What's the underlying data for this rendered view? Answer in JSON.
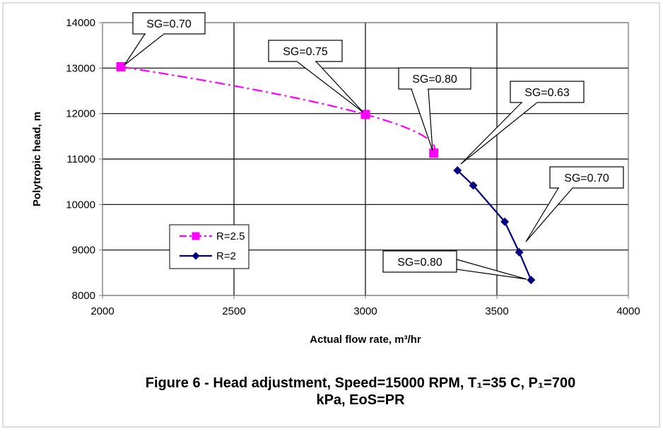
{
  "chart_data": {
    "type": "line",
    "xlabel": "Actual flow rate, m³/hr",
    "ylabel": "Polytropic head, m",
    "xlim": [
      2000,
      4000
    ],
    "ylim": [
      8000,
      14000
    ],
    "x_ticks": [
      "2000",
      "2500",
      "3000",
      "3500",
      "4000"
    ],
    "y_ticks": [
      "8000",
      "9000",
      "10000",
      "11000",
      "12000",
      "13000",
      "14000"
    ],
    "grid": true,
    "legend_position": "center-left",
    "series": [
      {
        "name": "R=2.5",
        "color": "#ff00ff",
        "marker": "square",
        "line_style": "dash-dot",
        "x": [
          2070,
          3000,
          3260
        ],
        "y": [
          13030,
          11980,
          11130
        ]
      },
      {
        "name": "R=2",
        "color": "#000080",
        "marker": "diamond",
        "line_style": "solid",
        "x": [
          3350,
          3410,
          3530,
          3585,
          3630
        ],
        "y": [
          10750,
          10420,
          9620,
          8950,
          8340
        ]
      }
    ],
    "annotations": [
      {
        "text": "SG=0.70",
        "x": 2070,
        "y": 13030
      },
      {
        "text": "SG=0.75",
        "x": 3000,
        "y": 11980
      },
      {
        "text": "SG=0.80",
        "x": 3260,
        "y": 11130
      },
      {
        "text": "SG=0.63",
        "x": 3350,
        "y": 10750
      },
      {
        "text": "SG=0.70",
        "x": 3585,
        "y": 8950
      },
      {
        "text": "SG=0.80",
        "x": 3630,
        "y": 8340
      }
    ]
  },
  "caption": {
    "line1": "Figure 6 - Head adjustment, Speed=15000 RPM, T₁=35 C, P₁=700",
    "line2": "kPa, EoS=PR"
  }
}
